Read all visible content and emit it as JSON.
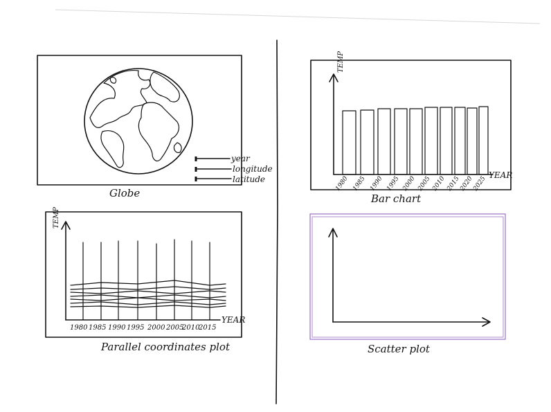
{
  "panels": {
    "globe": {
      "caption": "Globe",
      "legend": [
        "year",
        "longitude",
        "latitude"
      ]
    },
    "bar_chart": {
      "caption": "Bar chart",
      "y_axis_label": "TEMP",
      "x_axis_label": "YEAR",
      "x_ticks": [
        "1980",
        "1985",
        "1990",
        "1995",
        "2000",
        "2005",
        "2010",
        "2015",
        "2020",
        "2025"
      ]
    },
    "parallel_plot": {
      "caption": "Parallel coordinates plot",
      "y_axis_label": "TEMP",
      "x_axis_label": "YEAR",
      "x_ticks": [
        "1980",
        "1985",
        "1990",
        "1995",
        "2000",
        "2005",
        "2010",
        "2015"
      ]
    },
    "scatter_plot": {
      "caption": "Scatter plot",
      "accent": "#9b6fc4"
    }
  }
}
